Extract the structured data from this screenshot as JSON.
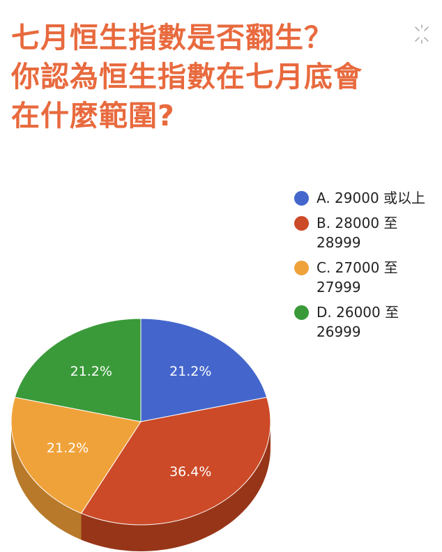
{
  "title_lines": [
    "七月恒生指數是否翻生？",
    "你認為恒生指數在七月底會",
    "在什麼範圍?"
  ],
  "chart_data": {
    "type": "pie",
    "style": "3d",
    "legend_position": "right",
    "title": "七月恒生指數是否翻生？你認為恒生指數在七月底會在什麼範圍?",
    "categories": [
      "A. 29000 或以上",
      "B. 28000 至 28999",
      "C. 27000 至 27999",
      "D. 26000 至 26999"
    ],
    "values": [
      21.2,
      36.4,
      21.2,
      21.2
    ],
    "labels": [
      "21.2%",
      "36.4%",
      "21.2%",
      "21.2%"
    ],
    "colors": [
      "#4466cc",
      "#cc4a28",
      "#f0a23a",
      "#3a9a3a"
    ],
    "side_colors": [
      "#30489a",
      "#973518",
      "#b8792a",
      "#2a722a"
    ]
  },
  "legend": [
    {
      "lines": [
        "A. 29000 或以上"
      ]
    },
    {
      "lines": [
        "B. 28000 至",
        "28999"
      ]
    },
    {
      "lines": [
        "C. 27000 至",
        "27999"
      ]
    },
    {
      "lines": [
        "D. 26000 至",
        "26999"
      ]
    }
  ]
}
